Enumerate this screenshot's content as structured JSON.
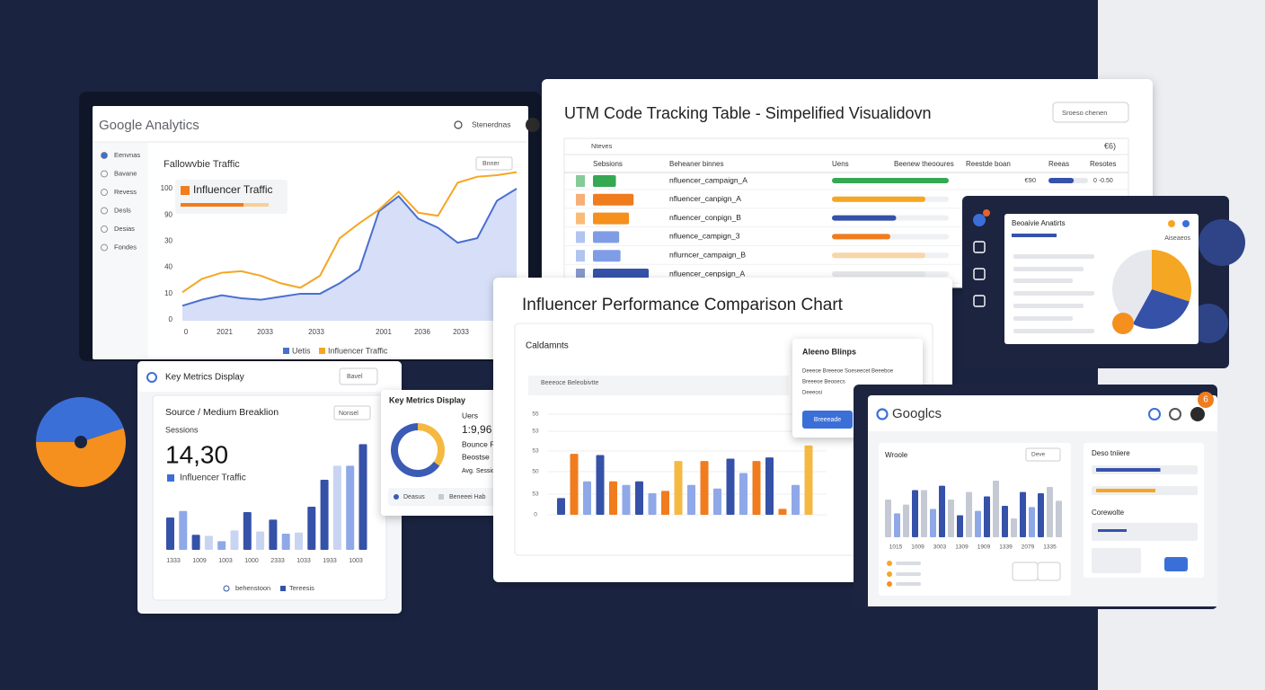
{
  "ga": {
    "brand": "Google Analytics",
    "user": "Stenerdnas",
    "nav": [
      "Eenvnas",
      "Bavane",
      "Revess",
      "Desls",
      "Desias",
      "Fondes"
    ],
    "chart_title": "Fallowvbie Traffic",
    "filter": "Bnner",
    "highlight": "Influencer Traffic",
    "y_labels": [
      "100",
      "90",
      "30",
      "40",
      "10",
      "0"
    ],
    "x_labels": [
      "0",
      "2021",
      "2033",
      "2033",
      "2001",
      "2036",
      "2033"
    ],
    "ylim": [
      0,
      100
    ],
    "series": [
      {
        "name": "Uetis",
        "color": "#4a6fd1",
        "values": [
          10,
          14,
          17,
          15,
          14,
          16,
          18,
          18,
          25,
          34,
          73,
          83,
          68,
          62,
          52,
          55,
          80,
          88
        ]
      },
      {
        "name": "Influencer Traffic",
        "color": "#f5a623",
        "values": [
          19,
          28,
          32,
          33,
          30,
          25,
          22,
          30,
          55,
          65,
          74,
          86,
          72,
          70,
          92,
          96,
          97,
          99
        ]
      }
    ]
  },
  "utm": {
    "title": "UTM Code Tracking Table - Simpelified Visualidovn",
    "button": "Sroeso chenen",
    "caption": "Nteves",
    "count": "€6)",
    "columns": [
      "Sebsions",
      "Beheaner binnes",
      "Uens",
      "Beenew theooures",
      "Reestde boan",
      "Reeas",
      "Resotes"
    ],
    "xlim": [
      0,
      100
    ],
    "rows": [
      {
        "name": "nfluencer_campaign_A",
        "color": "#34a853",
        "sessions": 35,
        "users_color": "#34a853",
        "users": 100
      },
      {
        "name": "nfluencer_canpign_A",
        "color": "#f07c1e",
        "sessions": 62,
        "users_color": "#f5a623",
        "users": 80
      },
      {
        "name": "nfluencer_conpign_B",
        "color": "#f5901e",
        "sessions": 55,
        "users_color": "#3552a8",
        "users": 55
      },
      {
        "name": "nfluence_campign_3",
        "color": "#7f9de6",
        "sessions": 40,
        "users_color": "#f07c1e",
        "users": 50
      },
      {
        "name": "nflurncer_campaign_B",
        "color": "#7f9de6",
        "sessions": 42,
        "users_color": "#f8d6a8",
        "users": 80
      },
      {
        "name": "nfluencer_cenpsign_A",
        "color": "#3552a8",
        "sessions": 85,
        "users_color": "#e3e5ea",
        "users": 80
      }
    ],
    "cost": "€90",
    "rate": 64,
    "rate_label": "0 -0.50"
  },
  "side": {
    "title": "Beoaivie Anatirts",
    "caption": "Aiseaeos",
    "segments": [
      {
        "value": 30,
        "color": "#f5a623"
      },
      {
        "value": 28,
        "color": "#3552a8"
      },
      {
        "value": 42,
        "color": "#e6e8ee"
      }
    ]
  },
  "left_pie": {
    "segments": [
      {
        "value": 45,
        "color": "#3b6fd8"
      },
      {
        "value": 55,
        "color": "#f5901e"
      }
    ]
  },
  "metrics": {
    "title": "Key Metrics Display",
    "button": "Bavel",
    "card_title": "Source / Medium Breaklion",
    "dropdown": "Nonsel",
    "label": "Sessions",
    "value": "14,30",
    "legend_label": "Influencer Traffic",
    "ylim": [
      0,
      100
    ],
    "bars": [
      {
        "value": 30,
        "color": "#3552a8"
      },
      {
        "value": 36,
        "color": "#8fa8e8"
      },
      {
        "value": 14,
        "color": "#3552a8"
      },
      {
        "value": 13,
        "color": "#c9d4f2"
      },
      {
        "value": 8,
        "color": "#8fa8e8"
      },
      {
        "value": 18,
        "color": "#c9d4f2"
      },
      {
        "value": 35,
        "color": "#3552a8"
      },
      {
        "value": 17,
        "color": "#c9d4f2"
      },
      {
        "value": 28,
        "color": "#3552a8"
      },
      {
        "value": 15,
        "color": "#8fa8e8"
      },
      {
        "value": 16,
        "color": "#c9d4f2"
      },
      {
        "value": 40,
        "color": "#3552a8"
      },
      {
        "value": 65,
        "color": "#3552a8"
      },
      {
        "value": 78,
        "color": "#c9d4f2"
      },
      {
        "value": 78,
        "color": "#8fa8e8"
      },
      {
        "value": 98,
        "color": "#3552a8"
      }
    ],
    "x_labels": [
      "1333",
      "1009",
      "1003",
      "1000",
      "2333",
      "1033",
      "1933",
      "1003"
    ],
    "legend": [
      "behenstoon",
      "Tereesis"
    ]
  },
  "kpi": {
    "title": "Key Metrics Display",
    "segments": [
      {
        "value": 35,
        "color": "#f5b942"
      },
      {
        "value": 65,
        "color": "#3b5bb5"
      }
    ],
    "items": [
      "Uers",
      "1:9,96",
      "Bounce Rate",
      "Beostse",
      "Avg. Session Budiom"
    ],
    "legend": [
      "Deasus",
      "Beneeei Hab"
    ]
  },
  "perf": {
    "title": "Influencer Performance Comparison Chart",
    "subtitle": "Caldamnts",
    "plot_title": "Beeeoce Beleobivtte",
    "y_labels": [
      "55",
      "53",
      "53",
      "50",
      "53",
      "0"
    ],
    "ylim": [
      0,
      100
    ],
    "bars": [
      {
        "value": 14,
        "color": "#3552a8"
      },
      {
        "value": 51,
        "color": "#f07c1e"
      },
      {
        "value": 28,
        "color": "#8fa8e8"
      },
      {
        "value": 50,
        "color": "#3552a8"
      },
      {
        "value": 28,
        "color": "#f07c1e"
      },
      {
        "value": 25,
        "color": "#8fa8e8"
      },
      {
        "value": 28,
        "color": "#3552a8"
      },
      {
        "value": 18,
        "color": "#8fa8e8"
      },
      {
        "value": 20,
        "color": "#f07c1e"
      },
      {
        "value": 45,
        "color": "#f5b942"
      },
      {
        "value": 25,
        "color": "#8fa8e8"
      },
      {
        "value": 45,
        "color": "#f07c1e"
      },
      {
        "value": 22,
        "color": "#8fa8e8"
      },
      {
        "value": 47,
        "color": "#3552a8"
      },
      {
        "value": 35,
        "color": "#8fa8e8"
      },
      {
        "value": 45,
        "color": "#f07c1e"
      },
      {
        "value": 48,
        "color": "#3552a8"
      },
      {
        "value": 5,
        "color": "#f07c1e"
      },
      {
        "value": 25,
        "color": "#8fa8e8"
      },
      {
        "value": 58,
        "color": "#f5b942"
      }
    ],
    "popup": {
      "title": "Aleeno Blinps",
      "lines": [
        "Deeeoe Breeeoe Soeseecet Beeeboe",
        "Breeeoe Beooecs",
        "Deeeosi"
      ],
      "button": "Breeeade"
    }
  },
  "google": {
    "brand": "Googlcs",
    "badge": "6",
    "card_title": "Wroole",
    "button": "Deve",
    "ylim": [
      0,
      100
    ],
    "bars": [
      {
        "value": 60,
        "color": "#c5c9d3"
      },
      {
        "value": 38,
        "color": "#8fa8e8"
      },
      {
        "value": 52,
        "color": "#c5c9d3"
      },
      {
        "value": 75,
        "color": "#3552a8"
      },
      {
        "value": 75,
        "color": "#c5c9d3"
      },
      {
        "value": 45,
        "color": "#8fa8e8"
      },
      {
        "value": 82,
        "color": "#3552a8"
      },
      {
        "value": 60,
        "color": "#c5c9d3"
      },
      {
        "value": 35,
        "color": "#3552a8"
      },
      {
        "value": 72,
        "color": "#c5c9d3"
      },
      {
        "value": 42,
        "color": "#8fa8e8"
      },
      {
        "value": 65,
        "color": "#3552a8"
      },
      {
        "value": 90,
        "color": "#c5c9d3"
      },
      {
        "value": 50,
        "color": "#3552a8"
      },
      {
        "value": 30,
        "color": "#c5c9d3"
      },
      {
        "value": 72,
        "color": "#3552a8"
      },
      {
        "value": 48,
        "color": "#8fa8e8"
      },
      {
        "value": 70,
        "color": "#3552a8"
      },
      {
        "value": 80,
        "color": "#c5c9d3"
      },
      {
        "value": 58,
        "color": "#c5c9d3"
      }
    ],
    "x_labels": [
      "1015",
      "1009",
      "3003",
      "1309",
      "1909",
      "1339",
      "2079",
      "1335"
    ],
    "right_title": "Deso tniiere",
    "right_subtitle": "Corewolte",
    "right_bars": [
      {
        "value": 65,
        "color": "#3552a8"
      },
      {
        "value": 60,
        "color": "#f5a623"
      }
    ]
  }
}
